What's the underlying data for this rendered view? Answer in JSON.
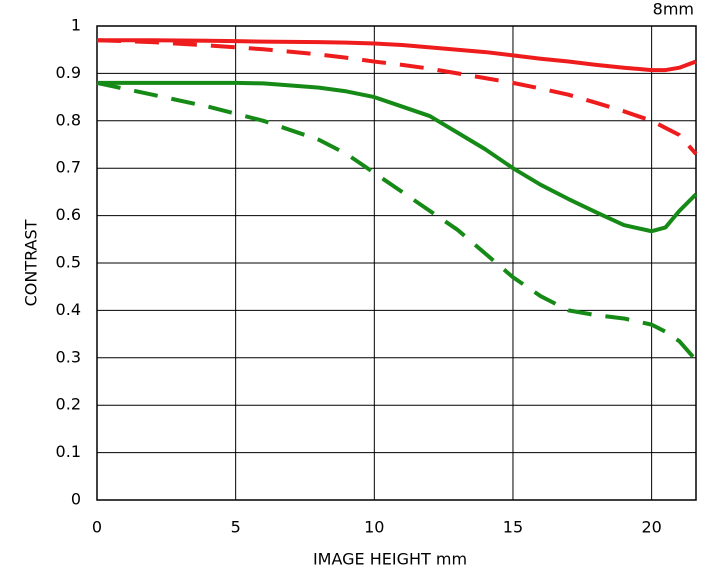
{
  "chart_data": {
    "type": "line",
    "title": "8mm",
    "xlabel": "IMAGE HEIGHT   mm",
    "ylabel": "CONTRAST",
    "x": [
      0,
      2,
      4,
      5,
      6,
      8,
      9,
      10,
      11,
      12,
      13,
      14,
      15,
      16,
      17,
      18,
      19,
      20,
      20.5,
      21,
      21.6
    ],
    "series": [
      {
        "color": "#ee1c1c",
        "style": "solid",
        "values": [
          0.97,
          0.97,
          0.969,
          0.968,
          0.967,
          0.966,
          0.965,
          0.963,
          0.96,
          0.955,
          0.95,
          0.945,
          0.938,
          0.931,
          0.925,
          0.918,
          0.912,
          0.907,
          0.907,
          0.912,
          0.925
        ]
      },
      {
        "color": "#ee1c1c",
        "style": "dashed",
        "values": [
          0.97,
          0.966,
          0.959,
          0.955,
          0.951,
          0.94,
          0.933,
          0.925,
          0.918,
          0.91,
          0.9,
          0.89,
          0.88,
          0.868,
          0.855,
          0.838,
          0.82,
          0.8,
          0.785,
          0.77,
          0.73
        ]
      },
      {
        "color": "#168a16",
        "style": "solid",
        "values": [
          0.88,
          0.88,
          0.88,
          0.88,
          0.879,
          0.87,
          0.862,
          0.85,
          0.83,
          0.81,
          0.775,
          0.74,
          0.7,
          0.665,
          0.635,
          0.607,
          0.58,
          0.567,
          0.575,
          0.61,
          0.645
        ]
      },
      {
        "color": "#168a16",
        "style": "dashed",
        "values": [
          0.88,
          0.855,
          0.83,
          0.815,
          0.8,
          0.76,
          0.73,
          0.69,
          0.65,
          0.61,
          0.57,
          0.52,
          0.47,
          0.43,
          0.4,
          0.39,
          0.383,
          0.37,
          0.355,
          0.335,
          0.295
        ]
      }
    ],
    "xlim": [
      0,
      21.6
    ],
    "xticks": [
      0,
      5,
      10,
      15,
      20
    ],
    "ylim": [
      0,
      1
    ],
    "yticks": [
      0,
      0.1,
      0.2,
      0.3,
      0.4,
      0.5,
      0.6,
      0.7,
      0.8,
      0.9,
      1
    ],
    "grid": true
  }
}
